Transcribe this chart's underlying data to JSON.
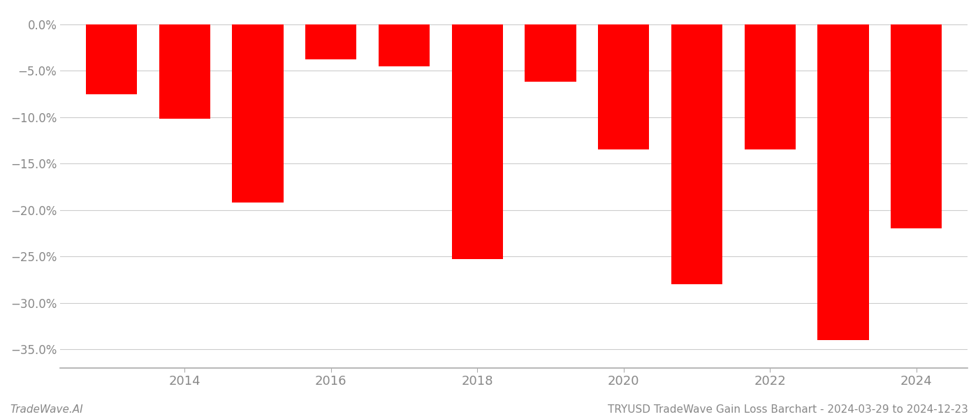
{
  "years": [
    2013,
    2014,
    2015,
    2016,
    2017,
    2018,
    2019,
    2020,
    2021,
    2022,
    2023,
    2024
  ],
  "values": [
    -0.075,
    -0.102,
    -0.192,
    -0.038,
    -0.045,
    -0.253,
    -0.062,
    -0.135,
    -0.28,
    -0.135,
    -0.34,
    -0.22
  ],
  "bar_color": "#ff0000",
  "title": "TRYUSD TradeWave Gain Loss Barchart - 2024-03-29 to 2024-12-23",
  "watermark": "TradeWave.AI",
  "ylim": [
    -0.37,
    0.015
  ],
  "yticks": [
    0.0,
    -0.05,
    -0.1,
    -0.15,
    -0.2,
    -0.25,
    -0.3,
    -0.35
  ],
  "background_color": "#ffffff",
  "grid_color": "#cccccc",
  "title_fontsize": 11,
  "watermark_fontsize": 11,
  "bar_width": 0.7,
  "xlim_left": 2012.3,
  "xlim_right": 2024.7,
  "xtick_years": [
    2014,
    2016,
    2018,
    2020,
    2022,
    2024
  ],
  "tick_label_color": "#888888",
  "axis_color": "#aaaaaa",
  "ytick_format_minus": true
}
